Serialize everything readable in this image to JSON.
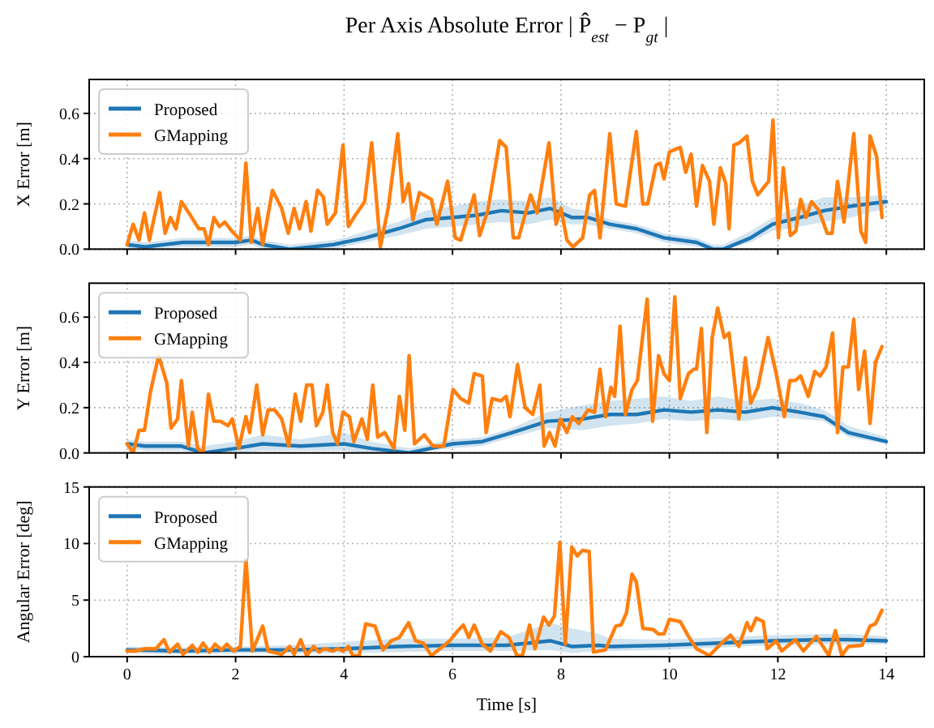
{
  "chart_data": [
    {
      "type": "line",
      "title": "Per Axis Absolute Error | P̂$_{est}$ − P$_{gt}$ |",
      "ylabel": "X Error [m]",
      "xlim": [
        -0.7,
        14.7
      ],
      "ylim": [
        0,
        0.75
      ],
      "xticks": [
        0,
        2,
        4,
        6,
        8,
        10,
        12,
        14
      ],
      "yticks": [
        {
          "value": 0,
          "label": "0.0"
        },
        0.2,
        0.4,
        0.6
      ],
      "grid": true,
      "legend": "top left",
      "tick_labels": "y",
      "series": [
        {
          "name": "Proposed",
          "color": "#1f77b4",
          "x": [
            0,
            0.33,
            1.03,
            2.0,
            2.3,
            2.5,
            3.0,
            3.8,
            4.0,
            4.4,
            5.0,
            5.5,
            6.0,
            6.45,
            6.9,
            7.4,
            7.8,
            8.2,
            8.5,
            8.9,
            9.4,
            9.9,
            10.5,
            10.8,
            11.0,
            11.5,
            11.9,
            12.4,
            12.85,
            13.35,
            14.0
          ],
          "values": [
            0.02,
            0.01,
            0.03,
            0.03,
            0.04,
            0.02,
            0.0,
            0.02,
            0.03,
            0.05,
            0.09,
            0.13,
            0.14,
            0.15,
            0.17,
            0.16,
            0.18,
            0.14,
            0.14,
            0.11,
            0.09,
            0.05,
            0.03,
            0.0,
            0.0,
            0.05,
            0.11,
            0.14,
            0.17,
            0.19,
            0.21
          ],
          "lower": [
            0,
            0,
            0.01,
            0.01,
            0.02,
            0,
            0,
            0,
            0.01,
            0.03,
            0.06,
            0.09,
            0.1,
            0.11,
            0.12,
            0.11,
            0.13,
            0.11,
            0.11,
            0.09,
            0.07,
            0.03,
            0.01,
            0,
            0,
            0.03,
            0.08,
            0.1,
            0.12,
            0.14,
            0.18
          ],
          "upper": [
            0.04,
            0.03,
            0.05,
            0.05,
            0.06,
            0.04,
            0.02,
            0.04,
            0.05,
            0.08,
            0.12,
            0.17,
            0.19,
            0.21,
            0.22,
            0.21,
            0.23,
            0.18,
            0.17,
            0.13,
            0.11,
            0.07,
            0.05,
            0.02,
            0.02,
            0.08,
            0.14,
            0.19,
            0.23,
            0.23,
            0.24
          ]
        },
        {
          "name": "GMapping",
          "color": "#ff7f0e",
          "x": [
            0,
            0.11,
            0.22,
            0.32,
            0.41,
            0.6,
            0.7,
            0.8,
            0.9,
            1.0,
            1.14,
            1.32,
            1.42,
            1.5,
            1.6,
            1.7,
            1.8,
            1.93,
            2.09,
            2.19,
            2.29,
            2.41,
            2.5,
            2.68,
            2.85,
            2.97,
            3.08,
            3.18,
            3.3,
            3.39,
            3.51,
            3.62,
            3.69,
            3.84,
            3.98,
            4.08,
            4.18,
            4.38,
            4.51,
            4.67,
            4.82,
            4.99,
            5.09,
            5.19,
            5.27,
            5.39,
            5.61,
            5.71,
            5.91,
            6.05,
            6.15,
            6.4,
            6.5,
            6.65,
            6.87,
            6.99,
            7.12,
            7.22,
            7.44,
            7.56,
            7.78,
            7.91,
            8.0,
            8.11,
            8.22,
            8.4,
            8.53,
            8.62,
            8.72,
            8.9,
            9.02,
            9.19,
            9.39,
            9.51,
            9.6,
            9.75,
            9.83,
            9.9,
            10.0,
            10.2,
            10.3,
            10.4,
            10.5,
            10.61,
            10.74,
            10.82,
            10.94,
            11.04,
            11.1,
            11.19,
            11.29,
            11.43,
            11.53,
            11.63,
            11.83,
            11.91,
            12.01,
            12.1,
            12.23,
            12.33,
            12.42,
            12.52,
            12.62,
            12.76,
            12.91,
            13.0,
            13.1,
            13.22,
            13.4,
            13.53,
            13.62,
            13.7,
            13.82,
            13.92
          ],
          "values": [
            0.02,
            0.11,
            0.04,
            0.16,
            0.04,
            0.25,
            0.07,
            0.14,
            0.09,
            0.21,
            0.16,
            0.09,
            0.09,
            0.02,
            0.14,
            0.1,
            0.12,
            0.08,
            0.04,
            0.38,
            0.03,
            0.18,
            0.02,
            0.26,
            0.18,
            0.07,
            0.18,
            0.09,
            0.21,
            0.08,
            0.26,
            0.23,
            0.11,
            0.16,
            0.46,
            0.1,
            0.14,
            0.21,
            0.47,
            0.01,
            0.19,
            0.51,
            0.21,
            0.29,
            0.13,
            0.25,
            0.22,
            0.11,
            0.3,
            0.05,
            0.04,
            0.24,
            0.06,
            0.17,
            0.48,
            0.45,
            0.05,
            0.05,
            0.24,
            0.16,
            0.47,
            0.11,
            0.18,
            0.04,
            0.01,
            0.05,
            0.24,
            0.26,
            0.05,
            0.51,
            0.2,
            0.19,
            0.52,
            0.2,
            0.2,
            0.37,
            0.38,
            0.31,
            0.43,
            0.45,
            0.34,
            0.42,
            0.19,
            0.37,
            0.3,
            0.11,
            0.36,
            0.29,
            0.09,
            0.46,
            0.47,
            0.5,
            0.3,
            0.24,
            0.3,
            0.57,
            0.05,
            0.36,
            0.06,
            0.08,
            0.22,
            0.14,
            0.21,
            0.17,
            0.07,
            0.07,
            0.3,
            0.12,
            0.51,
            0.08,
            0.03,
            0.5,
            0.41,
            0.14
          ]
        }
      ]
    },
    {
      "type": "line",
      "ylabel": "Y Error [m]",
      "xlim": [
        -0.7,
        14.7
      ],
      "ylim": [
        0,
        0.75
      ],
      "xticks": [
        0,
        2,
        4,
        6,
        8,
        10,
        12,
        14
      ],
      "yticks": [
        {
          "value": 0,
          "label": "0.0"
        },
        0.2,
        0.4,
        0.6
      ],
      "grid": true,
      "legend": "top left",
      "tick_labels": "y",
      "series": [
        {
          "name": "Proposed",
          "color": "#1f77b4",
          "x": [
            0,
            0.33,
            1.0,
            1.4,
            2.0,
            2.5,
            3.2,
            4.0,
            4.5,
            5.2,
            6.0,
            6.55,
            7.1,
            7.75,
            8.4,
            8.9,
            9.4,
            9.9,
            10.4,
            10.9,
            11.4,
            11.9,
            12.4,
            12.85,
            13.3,
            14.0
          ],
          "values": [
            0.04,
            0.03,
            0.03,
            0.0,
            0.02,
            0.04,
            0.03,
            0.04,
            0.02,
            0.0,
            0.04,
            0.05,
            0.09,
            0.14,
            0.15,
            0.17,
            0.17,
            0.19,
            0.18,
            0.19,
            0.18,
            0.2,
            0.18,
            0.16,
            0.09,
            0.05
          ],
          "lower": [
            0.02,
            0.01,
            0.01,
            0,
            0,
            0.01,
            0.01,
            0.01,
            0,
            0,
            0.02,
            0.03,
            0.07,
            0.11,
            0.1,
            0.12,
            0.13,
            0.15,
            0.14,
            0.15,
            0.14,
            0.16,
            0.15,
            0.14,
            0.07,
            0.04
          ],
          "upper": [
            0.06,
            0.05,
            0.05,
            0.03,
            0.05,
            0.08,
            0.06,
            0.09,
            0.05,
            0.02,
            0.06,
            0.07,
            0.11,
            0.18,
            0.21,
            0.23,
            0.24,
            0.25,
            0.23,
            0.25,
            0.23,
            0.24,
            0.22,
            0.19,
            0.12,
            0.07
          ]
        },
        {
          "name": "GMapping",
          "color": "#ff7f0e",
          "x": [
            0,
            0.11,
            0.22,
            0.32,
            0.43,
            0.58,
            0.73,
            0.81,
            0.93,
            1.0,
            1.13,
            1.2,
            1.3,
            1.4,
            1.5,
            1.6,
            1.72,
            1.86,
            1.94,
            2.06,
            2.19,
            2.26,
            2.39,
            2.5,
            2.6,
            2.72,
            2.85,
            2.98,
            3.1,
            3.2,
            3.31,
            3.41,
            3.49,
            3.61,
            3.69,
            3.79,
            3.88,
            3.98,
            4.1,
            4.18,
            4.33,
            4.43,
            4.53,
            4.62,
            4.75,
            4.92,
            5.02,
            5.12,
            5.2,
            5.3,
            5.48,
            5.64,
            5.84,
            6.01,
            6.15,
            6.3,
            6.4,
            6.55,
            6.62,
            6.73,
            6.89,
            6.99,
            7.06,
            7.2,
            7.34,
            7.48,
            7.61,
            7.69,
            7.79,
            7.89,
            7.99,
            8.11,
            8.21,
            8.33,
            8.5,
            8.62,
            8.72,
            8.82,
            8.92,
            8.99,
            9.09,
            9.19,
            9.31,
            9.41,
            9.59,
            9.69,
            9.8,
            9.9,
            10.0,
            10.1,
            10.2,
            10.35,
            10.45,
            10.5,
            10.59,
            10.69,
            10.79,
            10.89,
            11.01,
            11.1,
            11.28,
            11.4,
            11.5,
            11.63,
            11.82,
            11.97,
            12.12,
            12.22,
            12.32,
            12.42,
            12.56,
            12.68,
            12.78,
            12.89,
            13.01,
            13.1,
            13.2,
            13.3,
            13.4,
            13.49,
            13.6,
            13.7,
            13.8,
            13.92
          ],
          "values": [
            0.04,
            0.0,
            0.1,
            0.1,
            0.27,
            0.43,
            0.31,
            0.11,
            0.15,
            0.32,
            0.03,
            0.18,
            0.02,
            0.0,
            0.26,
            0.14,
            0.14,
            0.12,
            0.15,
            0.02,
            0.16,
            0.09,
            0.3,
            0.08,
            0.19,
            0.19,
            0.15,
            0.03,
            0.26,
            0.14,
            0.3,
            0.3,
            0.12,
            0.18,
            0.3,
            0.09,
            0.04,
            0.18,
            0.16,
            0.05,
            0.15,
            0.06,
            0.3,
            0.07,
            0.09,
            0.02,
            0.25,
            0.1,
            0.43,
            0.04,
            0.08,
            0.03,
            0.03,
            0.28,
            0.24,
            0.22,
            0.35,
            0.34,
            0.09,
            0.24,
            0.23,
            0.25,
            0.16,
            0.39,
            0.2,
            0.17,
            0.3,
            0.03,
            0.09,
            0.03,
            0.15,
            0.09,
            0.16,
            0.13,
            0.19,
            0.18,
            0.37,
            0.16,
            0.29,
            0.25,
            0.56,
            0.17,
            0.28,
            0.32,
            0.68,
            0.14,
            0.43,
            0.35,
            0.32,
            0.69,
            0.24,
            0.35,
            0.37,
            0.37,
            0.55,
            0.09,
            0.51,
            0.64,
            0.51,
            0.53,
            0.15,
            0.42,
            0.22,
            0.29,
            0.51,
            0.35,
            0.16,
            0.32,
            0.32,
            0.34,
            0.25,
            0.36,
            0.34,
            0.38,
            0.53,
            0.09,
            0.38,
            0.38,
            0.59,
            0.28,
            0.45,
            0.13,
            0.4,
            0.47
          ]
        }
      ]
    },
    {
      "type": "line",
      "xlabel": "Time [s]",
      "ylabel": "Angular Error [deg]",
      "xlim": [
        -0.7,
        14.7
      ],
      "ylim": [
        0,
        15
      ],
      "xticks": [
        0,
        2,
        4,
        6,
        8,
        10,
        12,
        14
      ],
      "yticks": [
        0,
        5,
        10,
        15
      ],
      "grid": true,
      "legend": "top left",
      "series": [
        {
          "name": "Proposed",
          "color": "#1f77b4",
          "x": [
            0,
            1.0,
            2.0,
            3.0,
            4.0,
            5.0,
            6.0,
            7.0,
            7.8,
            8.2,
            8.7,
            8.9,
            9.9,
            10.9,
            11.9,
            12.85,
            13.3,
            14.0
          ],
          "values": [
            0.6,
            0.5,
            0.6,
            0.6,
            0.7,
            0.9,
            1.0,
            1.0,
            1.4,
            0.9,
            1.0,
            0.9,
            1.0,
            1.2,
            1.4,
            1.5,
            1.5,
            1.4
          ],
          "lower": [
            0.3,
            0.2,
            0.3,
            0.3,
            0.3,
            0.4,
            0.5,
            0.5,
            0.6,
            0.3,
            0.5,
            0.5,
            0.6,
            0.8,
            1.0,
            1.1,
            1.1,
            1.1
          ],
          "upper": [
            0.9,
            0.8,
            0.9,
            1.0,
            1.3,
            1.6,
            1.6,
            1.7,
            3.0,
            2.5,
            2.0,
            1.6,
            1.5,
            1.7,
            1.9,
            2.0,
            2.0,
            1.8
          ]
        },
        {
          "name": "GMapping",
          "color": "#ff7f0e",
          "x": [
            0,
            0.14,
            0.33,
            0.53,
            0.68,
            0.78,
            0.93,
            1.03,
            1.2,
            1.3,
            1.4,
            1.52,
            1.62,
            1.74,
            1.84,
            1.96,
            2.09,
            2.19,
            2.31,
            2.5,
            2.6,
            2.85,
            3.0,
            3.08,
            3.2,
            3.31,
            3.44,
            3.54,
            3.64,
            3.79,
            3.88,
            3.98,
            4.08,
            4.16,
            4.28,
            4.4,
            4.57,
            4.72,
            4.87,
            5.02,
            5.19,
            5.32,
            5.46,
            5.61,
            5.95,
            6.1,
            6.2,
            6.3,
            6.4,
            6.55,
            6.7,
            6.89,
            7.04,
            7.19,
            7.29,
            7.42,
            7.52,
            7.68,
            7.78,
            7.88,
            7.98,
            8.08,
            8.2,
            8.3,
            8.4,
            8.52,
            8.6,
            8.82,
            9.01,
            9.11,
            9.21,
            9.31,
            9.39,
            9.51,
            9.7,
            9.8,
            9.9,
            10.0,
            10.2,
            10.35,
            10.5,
            10.74,
            10.94,
            11.13,
            11.28,
            11.43,
            11.5,
            11.6,
            11.73,
            11.8,
            11.97,
            12.07,
            12.32,
            12.47,
            12.71,
            12.94,
            13.06,
            13.18,
            13.3,
            13.55,
            13.7,
            13.8,
            13.92
          ],
          "values": [
            0.5,
            0.5,
            0.7,
            0.7,
            1.5,
            0.4,
            1.1,
            0.2,
            1.0,
            0.4,
            1.2,
            0.4,
            1.1,
            0.6,
            1.1,
            0.5,
            0.9,
            8.6,
            0.5,
            2.7,
            0.5,
            0.2,
            0.9,
            0.2,
            1.5,
            0.1,
            0.9,
            0.4,
            0.7,
            0.5,
            0.7,
            0.5,
            0.9,
            0.1,
            0.1,
            2.9,
            2.7,
            0.6,
            1.4,
            1.7,
            3.0,
            1.4,
            1.2,
            0.1,
            1.4,
            2.3,
            2.8,
            1.7,
            2.8,
            1.1,
            0.5,
            2.2,
            1.7,
            0.1,
            0.1,
            2.8,
            0.7,
            3.5,
            2.8,
            3.6,
            10.1,
            1.1,
            9.7,
            8.9,
            9.4,
            9.3,
            0.4,
            0.6,
            2.7,
            2.8,
            3.9,
            7.3,
            6.6,
            2.5,
            2.4,
            2.0,
            2.0,
            3.3,
            3.1,
            1.8,
            0.7,
            0.1,
            1.1,
            1.9,
            0.9,
            3.0,
            2.3,
            3.4,
            3.1,
            0.7,
            1.4,
            0.5,
            1.5,
            0.5,
            1.8,
            0.1,
            2.3,
            0.1,
            0.9,
            1.0,
            2.7,
            2.9,
            4.1
          ]
        }
      ]
    }
  ]
}
